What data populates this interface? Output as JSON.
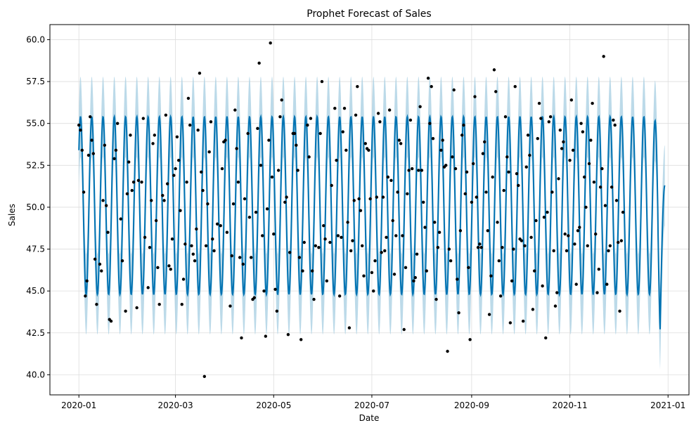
{
  "chart_data": {
    "type": "line",
    "title": "Prophet Forecast of Sales",
    "xlabel": "Date",
    "ylabel": "Sales",
    "x_range": [
      "2019-12-14",
      "2021-01-14"
    ],
    "ylim": [
      38.8,
      60.9
    ],
    "y_ticks": [
      "40.0",
      "42.5",
      "45.0",
      "47.5",
      "50.0",
      "52.5",
      "55.0",
      "57.5",
      "60.0"
    ],
    "x_ticks": [
      {
        "date": "2020-01-01",
        "label": "2020-01"
      },
      {
        "date": "2020-03-01",
        "label": "2020-03"
      },
      {
        "date": "2020-05-01",
        "label": "2020-05"
      },
      {
        "date": "2020-07-01",
        "label": "2020-07"
      },
      {
        "date": "2020-09-01",
        "label": "2020-09"
      },
      {
        "date": "2020-11-01",
        "label": "2020-11"
      },
      {
        "date": "2021-01-01",
        "label": "2021-01"
      }
    ],
    "grid": true,
    "colors": {
      "forecast": "#0072B2",
      "interval": "#a6cde2",
      "observed": "#000000",
      "grid": "#dddddd"
    },
    "forecast": {
      "start": "2020-01-01",
      "end": "2020-12-30",
      "mean_level": 50.1,
      "amplitude": 5.3,
      "period_days": 7,
      "interval_half_width": 2.4,
      "first_peak": "2020-01-02",
      "final_trough": {
        "date": "2020-12-27",
        "value": 42.3
      },
      "final_value": {
        "date": "2020-12-30",
        "value": 51.3
      }
    },
    "observed": [
      [
        "2020-01-01",
        54.9
      ],
      [
        "2020-01-02",
        54.6
      ],
      [
        "2020-01-03",
        53.4
      ],
      [
        "2020-01-04",
        50.9
      ],
      [
        "2020-01-05",
        44.7
      ],
      [
        "2020-01-06",
        45.6
      ],
      [
        "2020-01-07",
        53.1
      ],
      [
        "2020-01-08",
        55.4
      ],
      [
        "2020-01-09",
        54.0
      ],
      [
        "2020-01-10",
        53.2
      ],
      [
        "2020-01-11",
        46.9
      ],
      [
        "2020-01-12",
        44.2
      ],
      [
        "2020-01-14",
        46.6
      ],
      [
        "2020-01-15",
        46.2
      ],
      [
        "2020-01-16",
        50.4
      ],
      [
        "2020-01-17",
        53.7
      ],
      [
        "2020-01-18",
        50.1
      ],
      [
        "2020-01-19",
        48.5
      ],
      [
        "2020-01-20",
        43.3
      ],
      [
        "2020-01-21",
        43.2
      ],
      [
        "2020-01-23",
        52.9
      ],
      [
        "2020-01-24",
        53.4
      ],
      [
        "2020-01-25",
        55.0
      ],
      [
        "2020-01-27",
        49.3
      ],
      [
        "2020-01-28",
        46.8
      ],
      [
        "2020-01-30",
        43.8
      ],
      [
        "2020-01-31",
        50.8
      ],
      [
        "2020-02-01",
        52.7
      ],
      [
        "2020-02-02",
        54.3
      ],
      [
        "2020-02-03",
        51.0
      ],
      [
        "2020-02-04",
        51.5
      ],
      [
        "2020-02-06",
        44.0
      ],
      [
        "2020-02-07",
        51.6
      ],
      [
        "2020-02-09",
        51.5
      ],
      [
        "2020-02-10",
        55.3
      ],
      [
        "2020-02-11",
        48.2
      ],
      [
        "2020-02-13",
        45.2
      ],
      [
        "2020-02-14",
        47.6
      ],
      [
        "2020-02-15",
        50.4
      ],
      [
        "2020-02-16",
        53.8
      ],
      [
        "2020-02-17",
        54.3
      ],
      [
        "2020-02-18",
        49.2
      ],
      [
        "2020-02-19",
        46.4
      ],
      [
        "2020-02-20",
        44.2
      ],
      [
        "2020-02-22",
        50.7
      ],
      [
        "2020-02-23",
        50.4
      ],
      [
        "2020-02-24",
        55.5
      ],
      [
        "2020-02-25",
        51.4
      ],
      [
        "2020-02-26",
        46.5
      ],
      [
        "2020-02-27",
        46.3
      ],
      [
        "2020-02-28",
        48.1
      ],
      [
        "2020-02-29",
        51.9
      ],
      [
        "2020-03-01",
        52.3
      ],
      [
        "2020-03-02",
        54.2
      ],
      [
        "2020-03-03",
        52.8
      ],
      [
        "2020-03-04",
        49.8
      ],
      [
        "2020-03-05",
        44.2
      ],
      [
        "2020-03-06",
        45.7
      ],
      [
        "2020-03-07",
        47.8
      ],
      [
        "2020-03-08",
        51.5
      ],
      [
        "2020-03-09",
        56.5
      ],
      [
        "2020-03-10",
        54.9
      ],
      [
        "2020-03-11",
        47.7
      ],
      [
        "2020-03-12",
        47.2
      ],
      [
        "2020-03-13",
        46.8
      ],
      [
        "2020-03-14",
        48.7
      ],
      [
        "2020-03-15",
        54.6
      ],
      [
        "2020-03-16",
        58.0
      ],
      [
        "2020-03-17",
        52.1
      ],
      [
        "2020-03-18",
        51.0
      ],
      [
        "2020-03-19",
        39.9
      ],
      [
        "2020-03-20",
        47.7
      ],
      [
        "2020-03-21",
        50.2
      ],
      [
        "2020-03-22",
        53.3
      ],
      [
        "2020-03-23",
        55.1
      ],
      [
        "2020-03-24",
        48.1
      ],
      [
        "2020-03-25",
        47.4
      ],
      [
        "2020-03-27",
        49.0
      ],
      [
        "2020-03-29",
        48.9
      ],
      [
        "2020-03-30",
        52.3
      ],
      [
        "2020-03-31",
        53.9
      ],
      [
        "2020-04-01",
        54.0
      ],
      [
        "2020-04-02",
        48.5
      ],
      [
        "2020-04-04",
        44.1
      ],
      [
        "2020-04-05",
        47.1
      ],
      [
        "2020-04-06",
        50.2
      ],
      [
        "2020-04-07",
        55.8
      ],
      [
        "2020-04-08",
        53.5
      ],
      [
        "2020-04-09",
        51.5
      ],
      [
        "2020-04-10",
        47.0
      ],
      [
        "2020-04-11",
        42.2
      ],
      [
        "2020-04-12",
        46.6
      ],
      [
        "2020-04-13",
        50.5
      ],
      [
        "2020-04-15",
        54.4
      ],
      [
        "2020-04-16",
        49.4
      ],
      [
        "2020-04-17",
        47.0
      ],
      [
        "2020-04-18",
        44.5
      ],
      [
        "2020-04-19",
        44.6
      ],
      [
        "2020-04-20",
        49.7
      ],
      [
        "2020-04-21",
        54.7
      ],
      [
        "2020-04-22",
        58.6
      ],
      [
        "2020-04-23",
        52.5
      ],
      [
        "2020-04-24",
        48.3
      ],
      [
        "2020-04-25",
        45.0
      ],
      [
        "2020-04-26",
        42.3
      ],
      [
        "2020-04-27",
        49.9
      ],
      [
        "2020-04-28",
        54.0
      ],
      [
        "2020-04-29",
        59.8
      ],
      [
        "2020-04-30",
        51.8
      ],
      [
        "2020-05-01",
        48.4
      ],
      [
        "2020-05-02",
        45.1
      ],
      [
        "2020-05-03",
        43.8
      ],
      [
        "2020-05-04",
        52.2
      ],
      [
        "2020-05-05",
        55.4
      ],
      [
        "2020-05-06",
        56.4
      ],
      [
        "2020-05-08",
        50.3
      ],
      [
        "2020-05-09",
        50.6
      ],
      [
        "2020-05-10",
        42.4
      ],
      [
        "2020-05-11",
        47.3
      ],
      [
        "2020-05-13",
        54.4
      ],
      [
        "2020-05-14",
        54.4
      ],
      [
        "2020-05-15",
        53.7
      ],
      [
        "2020-05-16",
        52.2
      ],
      [
        "2020-05-17",
        47.0
      ],
      [
        "2020-05-18",
        42.1
      ],
      [
        "2020-05-19",
        46.2
      ],
      [
        "2020-05-20",
        47.9
      ],
      [
        "2020-05-22",
        54.9
      ],
      [
        "2020-05-23",
        53.0
      ],
      [
        "2020-05-24",
        55.3
      ],
      [
        "2020-05-25",
        46.2
      ],
      [
        "2020-05-26",
        44.5
      ],
      [
        "2020-05-27",
        47.7
      ],
      [
        "2020-05-29",
        47.6
      ],
      [
        "2020-05-30",
        54.4
      ],
      [
        "2020-05-31",
        57.5
      ],
      [
        "2020-06-01",
        48.9
      ],
      [
        "2020-06-02",
        48.1
      ],
      [
        "2020-06-03",
        45.6
      ],
      [
        "2020-06-05",
        47.9
      ],
      [
        "2020-06-06",
        51.3
      ],
      [
        "2020-06-08",
        55.9
      ],
      [
        "2020-06-09",
        52.8
      ],
      [
        "2020-06-10",
        48.3
      ],
      [
        "2020-06-11",
        44.7
      ],
      [
        "2020-06-12",
        48.2
      ],
      [
        "2020-06-13",
        54.5
      ],
      [
        "2020-06-14",
        55.9
      ],
      [
        "2020-06-15",
        53.4
      ],
      [
        "2020-06-16",
        49.1
      ],
      [
        "2020-06-17",
        42.8
      ],
      [
        "2020-06-18",
        47.4
      ],
      [
        "2020-06-19",
        48.0
      ],
      [
        "2020-06-20",
        50.4
      ],
      [
        "2020-06-21",
        55.5
      ],
      [
        "2020-06-22",
        57.2
      ],
      [
        "2020-06-23",
        50.5
      ],
      [
        "2020-06-24",
        49.8
      ],
      [
        "2020-06-25",
        47.7
      ],
      [
        "2020-06-26",
        45.9
      ],
      [
        "2020-06-27",
        53.8
      ],
      [
        "2020-06-28",
        53.5
      ],
      [
        "2020-06-29",
        53.4
      ],
      [
        "2020-06-30",
        50.5
      ],
      [
        "2020-07-01",
        46.1
      ],
      [
        "2020-07-02",
        45.0
      ],
      [
        "2020-07-03",
        46.8
      ],
      [
        "2020-07-04",
        50.6
      ],
      [
        "2020-07-05",
        55.6
      ],
      [
        "2020-07-06",
        55.1
      ],
      [
        "2020-07-07",
        47.3
      ],
      [
        "2020-07-08",
        50.6
      ],
      [
        "2020-07-09",
        47.4
      ],
      [
        "2020-07-10",
        48.2
      ],
      [
        "2020-07-11",
        51.8
      ],
      [
        "2020-07-12",
        55.8
      ],
      [
        "2020-07-13",
        51.6
      ],
      [
        "2020-07-14",
        49.2
      ],
      [
        "2020-07-15",
        46.0
      ],
      [
        "2020-07-16",
        48.3
      ],
      [
        "2020-07-17",
        50.9
      ],
      [
        "2020-07-18",
        54.0
      ],
      [
        "2020-07-19",
        53.8
      ],
      [
        "2020-07-20",
        48.3
      ],
      [
        "2020-07-21",
        42.7
      ],
      [
        "2020-07-22",
        46.4
      ],
      [
        "2020-07-23",
        50.8
      ],
      [
        "2020-07-24",
        52.2
      ],
      [
        "2020-07-25",
        55.2
      ],
      [
        "2020-07-26",
        52.3
      ],
      [
        "2020-07-27",
        45.6
      ],
      [
        "2020-07-28",
        45.8
      ],
      [
        "2020-07-29",
        47.2
      ],
      [
        "2020-07-30",
        52.2
      ],
      [
        "2020-07-31",
        56.0
      ],
      [
        "2020-08-01",
        52.2
      ],
      [
        "2020-08-02",
        50.3
      ],
      [
        "2020-08-03",
        48.8
      ],
      [
        "2020-08-04",
        46.2
      ],
      [
        "2020-08-05",
        57.7
      ],
      [
        "2020-08-06",
        55.0
      ],
      [
        "2020-08-07",
        57.2
      ],
      [
        "2020-08-08",
        54.1
      ],
      [
        "2020-08-09",
        49.1
      ],
      [
        "2020-08-10",
        44.5
      ],
      [
        "2020-08-11",
        47.6
      ],
      [
        "2020-08-12",
        48.5
      ],
      [
        "2020-08-13",
        53.4
      ],
      [
        "2020-08-14",
        54.0
      ],
      [
        "2020-08-15",
        52.4
      ],
      [
        "2020-08-16",
        52.5
      ],
      [
        "2020-08-17",
        41.4
      ],
      [
        "2020-08-18",
        47.5
      ],
      [
        "2020-08-19",
        46.8
      ],
      [
        "2020-08-20",
        53.0
      ],
      [
        "2020-08-21",
        57.0
      ],
      [
        "2020-08-22",
        52.3
      ],
      [
        "2020-08-23",
        45.7
      ],
      [
        "2020-08-24",
        43.7
      ],
      [
        "2020-08-25",
        48.6
      ],
      [
        "2020-08-26",
        54.3
      ],
      [
        "2020-08-27",
        54.9
      ],
      [
        "2020-08-28",
        50.8
      ],
      [
        "2020-08-29",
        52.1
      ],
      [
        "2020-08-30",
        46.4
      ],
      [
        "2020-08-31",
        42.1
      ],
      [
        "2020-09-01",
        50.3
      ],
      [
        "2020-09-02",
        52.6
      ],
      [
        "2020-09-03",
        56.6
      ],
      [
        "2020-09-04",
        50.6
      ],
      [
        "2020-09-05",
        47.6
      ],
      [
        "2020-09-06",
        47.8
      ],
      [
        "2020-09-07",
        47.6
      ],
      [
        "2020-09-08",
        53.2
      ],
      [
        "2020-09-09",
        53.9
      ],
      [
        "2020-09-10",
        50.9
      ],
      [
        "2020-09-11",
        48.6
      ],
      [
        "2020-09-12",
        43.6
      ],
      [
        "2020-09-13",
        45.9
      ],
      [
        "2020-09-14",
        51.8
      ],
      [
        "2020-09-15",
        58.2
      ],
      [
        "2020-09-16",
        56.9
      ],
      [
        "2020-09-17",
        49.1
      ],
      [
        "2020-09-18",
        46.8
      ],
      [
        "2020-09-19",
        44.7
      ],
      [
        "2020-09-20",
        47.6
      ],
      [
        "2020-09-21",
        51.0
      ],
      [
        "2020-09-22",
        55.4
      ],
      [
        "2020-09-23",
        53.0
      ],
      [
        "2020-09-24",
        52.1
      ],
      [
        "2020-09-25",
        43.1
      ],
      [
        "2020-09-26",
        45.6
      ],
      [
        "2020-09-27",
        47.5
      ],
      [
        "2020-09-28",
        57.2
      ],
      [
        "2020-09-29",
        52.0
      ],
      [
        "2020-09-30",
        51.3
      ],
      [
        "2020-10-01",
        48.1
      ],
      [
        "2020-10-02",
        48.0
      ],
      [
        "2020-10-03",
        43.2
      ],
      [
        "2020-10-04",
        47.7
      ],
      [
        "2020-10-05",
        52.4
      ],
      [
        "2020-10-06",
        54.3
      ],
      [
        "2020-10-07",
        53.1
      ],
      [
        "2020-10-08",
        48.2
      ],
      [
        "2020-10-09",
        43.9
      ],
      [
        "2020-10-10",
        46.2
      ],
      [
        "2020-10-11",
        49.2
      ],
      [
        "2020-10-12",
        54.1
      ],
      [
        "2020-10-13",
        56.2
      ],
      [
        "2020-10-14",
        55.3
      ],
      [
        "2020-10-15",
        45.3
      ],
      [
        "2020-10-16",
        49.4
      ],
      [
        "2020-10-17",
        42.2
      ],
      [
        "2020-10-18",
        49.7
      ],
      [
        "2020-10-19",
        55.1
      ],
      [
        "2020-10-20",
        55.4
      ],
      [
        "2020-10-21",
        50.9
      ],
      [
        "2020-10-22",
        47.4
      ],
      [
        "2020-10-23",
        44.1
      ],
      [
        "2020-10-24",
        44.9
      ],
      [
        "2020-10-25",
        51.7
      ],
      [
        "2020-10-26",
        54.6
      ],
      [
        "2020-10-27",
        53.5
      ],
      [
        "2020-10-28",
        53.9
      ],
      [
        "2020-10-29",
        48.4
      ],
      [
        "2020-10-30",
        47.4
      ],
      [
        "2020-10-31",
        48.3
      ],
      [
        "2020-11-01",
        52.8
      ],
      [
        "2020-11-02",
        56.4
      ],
      [
        "2020-11-03",
        53.4
      ],
      [
        "2020-11-04",
        47.8
      ],
      [
        "2020-11-05",
        45.4
      ],
      [
        "2020-11-06",
        48.6
      ],
      [
        "2020-11-07",
        48.8
      ],
      [
        "2020-11-08",
        55.0
      ],
      [
        "2020-11-09",
        54.5
      ],
      [
        "2020-11-10",
        51.8
      ],
      [
        "2020-11-11",
        50.0
      ],
      [
        "2020-11-12",
        47.7
      ],
      [
        "2020-11-13",
        52.6
      ],
      [
        "2020-11-14",
        54.0
      ],
      [
        "2020-11-15",
        56.2
      ],
      [
        "2020-11-16",
        51.5
      ],
      [
        "2020-11-17",
        48.4
      ],
      [
        "2020-11-18",
        44.9
      ],
      [
        "2020-11-19",
        46.3
      ],
      [
        "2020-11-20",
        51.2
      ],
      [
        "2020-11-21",
        52.3
      ],
      [
        "2020-11-22",
        59.0
      ],
      [
        "2020-11-23",
        50.1
      ],
      [
        "2020-11-24",
        45.4
      ],
      [
        "2020-11-25",
        47.4
      ],
      [
        "2020-11-26",
        47.7
      ],
      [
        "2020-11-27",
        51.2
      ],
      [
        "2020-11-28",
        55.2
      ],
      [
        "2020-11-29",
        54.9
      ],
      [
        "2020-11-30",
        50.4
      ],
      [
        "2020-12-01",
        47.9
      ],
      [
        "2020-12-02",
        43.8
      ],
      [
        "2020-12-03",
        48.0
      ],
      [
        "2020-12-04",
        49.7
      ]
    ]
  }
}
